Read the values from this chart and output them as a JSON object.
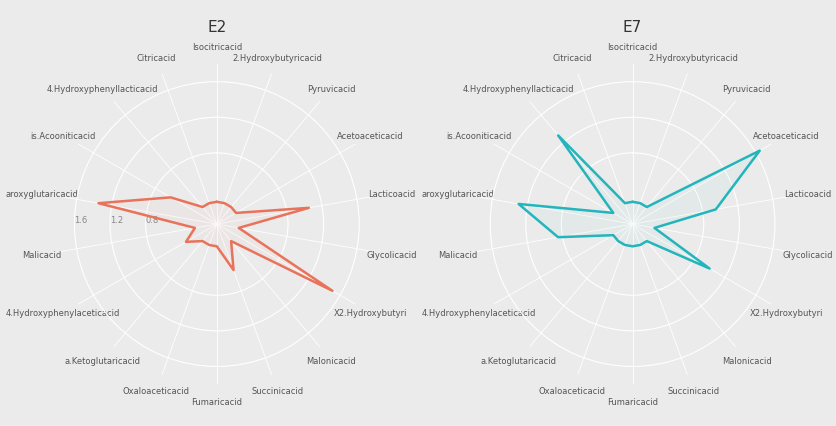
{
  "titles": [
    "E2",
    "E7"
  ],
  "categories": [
    "Isocitricacid",
    "2.Hydroxybutyricacid",
    "Pyruvicacid",
    "Acetoaceticacid",
    "Lacticoacid",
    "Glycolicacid",
    "X2.Hydroxybutyri",
    "Malonicacid",
    "Succinicacid",
    "Fumaricacid",
    "Oxaloaceticacid",
    "a.Ketoglutaricacid",
    "4.Hydroxyphenylaceticacid",
    "Malicacid",
    "aroxyglutaricacid",
    "is.Acooniticacid",
    "4.Hydroxyphenyllacticacid",
    "Citricacid"
  ],
  "E2_values": [
    0.25,
    0.25,
    0.25,
    0.25,
    1.05,
    0.25,
    1.5,
    0.25,
    0.55,
    0.25,
    0.25,
    0.25,
    0.4,
    0.25,
    1.35,
    0.6,
    0.25,
    0.25
  ],
  "E7_values": [
    0.25,
    0.25,
    0.25,
    1.65,
    0.95,
    0.25,
    1.0,
    0.25,
    0.25,
    0.25,
    0.25,
    0.25,
    0.25,
    0.85,
    1.3,
    0.25,
    1.3,
    0.25
  ],
  "E2_color": "#E8735A",
  "E7_color": "#22B5BC",
  "bg_color": "#EBEBEB",
  "grid_color": "#FFFFFF",
  "axis_label_color": "#555555",
  "rtick_labels": [
    "0.8",
    "1.2",
    "1.6"
  ],
  "rtick_values": [
    0.8,
    1.2,
    1.6
  ],
  "rmin": 0.0,
  "rmax": 1.8,
  "linewidth": 1.8,
  "fill_alpha": 0.0,
  "title_fontsize": 11,
  "label_fontsize": 6.0,
  "panel_bg": "#EBEBEB",
  "spoke_color": "#FFFFFF",
  "ring_color": "#FFFFFF"
}
